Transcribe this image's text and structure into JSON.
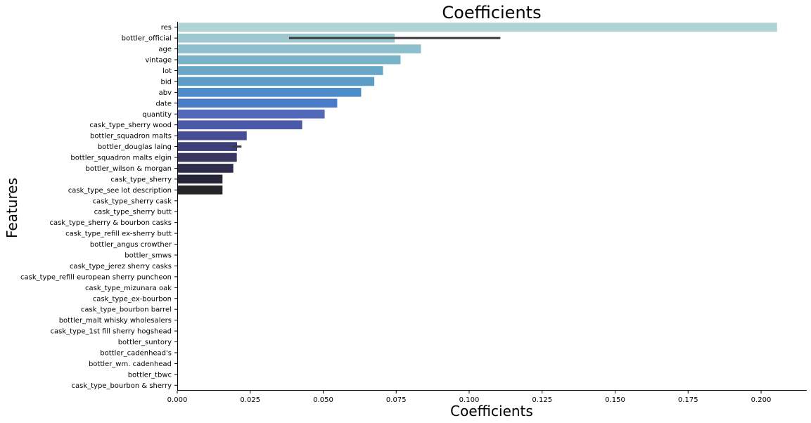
{
  "chart_data": {
    "type": "bar",
    "orientation": "horizontal",
    "title": "Coefficients",
    "xlabel": "Coefficients",
    "ylabel": "Features",
    "xlim": [
      0,
      0.215
    ],
    "xticks": [
      "0.000",
      "0.025",
      "0.050",
      "0.075",
      "0.100",
      "0.125",
      "0.150",
      "0.175",
      "0.200"
    ],
    "grid": false,
    "palette": "icefire",
    "categories": [
      "res",
      "bottler_official",
      "age",
      "vintage",
      "lot",
      "bid",
      "abv",
      "date",
      "quantity",
      "cask_type_sherry wood",
      "bottler_squadron malts",
      "bottler_douglas laing",
      "bottler_squadron malts elgin",
      "bottler_wilson & morgan",
      "cask_type_sherry",
      "cask_type_see lot description",
      "cask_type_sherry cask",
      "cask_type_sherry butt",
      "cask_type_sherry & bourbon casks",
      "cask_type_refill ex-sherry butt",
      "bottler_angus crowther",
      "bottler_smws",
      "cask_type_jerez sherry casks",
      "cask_type_refill european sherry puncheon",
      "cask_type_mizunara oak",
      "cask_type_ex-bourbon",
      "cask_type_bourbon barrel",
      "bottler_malt whisky wholesalers",
      "cask_type_1st fill sherry hogshead",
      "bottler_suntory",
      "bottler_cadenhead's",
      "bottler_wm. cadenhead",
      "bottler_tbwc",
      "cask_type_bourbon & sherry"
    ],
    "values": [
      0.2055,
      0.0745,
      0.0835,
      0.0765,
      0.0705,
      0.0675,
      0.063,
      0.0548,
      0.0505,
      0.0428,
      0.0238,
      0.0205,
      0.0204,
      0.0192,
      0.0155,
      0.0155,
      0,
      0,
      0,
      0,
      0,
      0,
      0,
      0,
      0,
      0,
      0,
      0,
      0,
      0,
      0,
      0,
      0,
      0
    ],
    "error_bars": [
      {
        "category": "bottler_official",
        "low": 0.0383,
        "high": 0.1107
      },
      {
        "category": "bottler_douglas laing",
        "low": 0.019,
        "high": 0.022
      }
    ],
    "colors": [
      "#b0d3d4",
      "#9ec8cf",
      "#8dbfcc",
      "#79b3c8",
      "#68a8c6",
      "#5a9cc6",
      "#4b8cc9",
      "#4a7bc6",
      "#5169b8",
      "#4b5aa8",
      "#474e93",
      "#3e3f78",
      "#393660",
      "#2f2d4a",
      "#272638",
      "#242429"
    ]
  }
}
